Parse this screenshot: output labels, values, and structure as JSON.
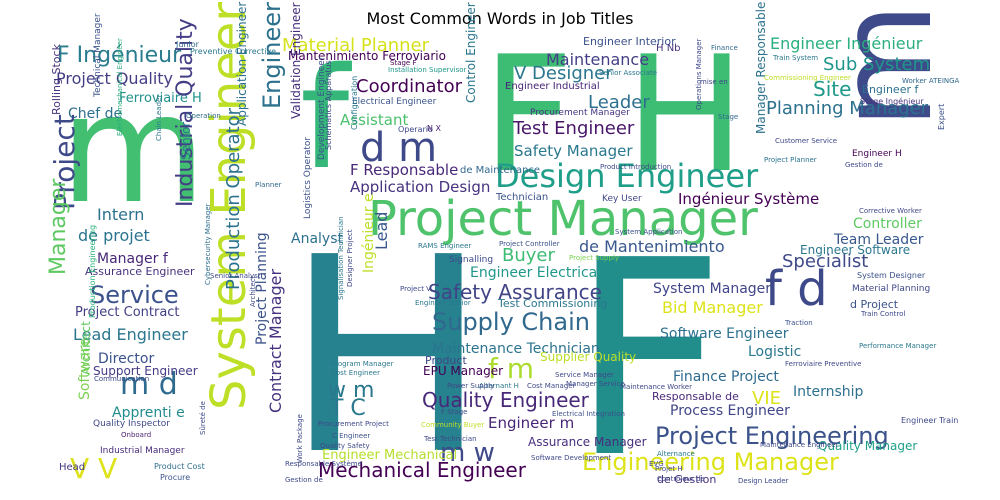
{
  "title": "Most Common Words in Job Titles",
  "words": [
    {
      "text": "H",
      "color": "#26828e"
    },
    {
      "text": "F",
      "color": "#218e8c"
    },
    {
      "text": "F H",
      "color": "#3dbc74"
    },
    {
      "text": "m",
      "color": "#43bf71"
    },
    {
      "text": "f",
      "color": "#35b779"
    },
    {
      "text": "m",
      "color": "#3e4a89"
    },
    {
      "text": "Project Manager",
      "color": "#4ec36b"
    },
    {
      "text": "System Engineer",
      "color": "#bddf26"
    },
    {
      "text": "Design Engineer",
      "color": "#1f9e89"
    },
    {
      "text": "Engineering Manager",
      "color": "#dde318"
    },
    {
      "text": "Project Engineering",
      "color": "#3b528b"
    },
    {
      "text": "Supply Chain",
      "color": "#31688e"
    },
    {
      "text": "Safety Assurance",
      "color": "#414487"
    },
    {
      "text": "Quality Engineer",
      "color": "#482878"
    },
    {
      "text": "Mechanical Engineer",
      "color": "#440154"
    },
    {
      "text": "d m",
      "color": "#3e4989"
    },
    {
      "text": "f d",
      "color": "#3e4989"
    },
    {
      "text": "m d",
      "color": "#2f6b8e"
    },
    {
      "text": "f m",
      "color": "#addc30"
    },
    {
      "text": "m w",
      "color": "#3e4a89"
    },
    {
      "text": "w m",
      "color": "#2a788e"
    },
    {
      "text": "T C",
      "color": "#2a788e"
    },
    {
      "text": "V V",
      "color": "#dde318"
    },
    {
      "text": "F Ingénieur",
      "color": "#287c8e"
    },
    {
      "text": "Material Planner",
      "color": "#d5e21a"
    },
    {
      "text": "Engineer Ingénieur",
      "color": "#29af7f"
    },
    {
      "text": "Sub System",
      "color": "#1f968b"
    },
    {
      "text": "Planning Manager",
      "color": "#2c718e"
    },
    {
      "text": "Site",
      "color": "#1f9a8a"
    },
    {
      "text": "V Designer",
      "color": "#2a768e"
    },
    {
      "text": "Maintenance",
      "color": "#433e85"
    },
    {
      "text": "Coordinator",
      "color": "#440154"
    },
    {
      "text": "Leader",
      "color": "#2d708e"
    },
    {
      "text": "Test Engineer",
      "color": "#481668"
    },
    {
      "text": "Safety Manager",
      "color": "#2a788e"
    },
    {
      "text": "Assistant",
      "color": "#4ac16d"
    },
    {
      "text": "Project Quality",
      "color": "#433d84"
    },
    {
      "text": "Chef de",
      "color": "#2e6e8e"
    },
    {
      "text": "Ferroviaire H",
      "color": "#21918c"
    },
    {
      "text": "Mantenimiento Ferroviario",
      "color": "#440154"
    },
    {
      "text": "Engineer Interior",
      "color": "#3b528b"
    },
    {
      "text": "H Nb",
      "color": "#46327e"
    },
    {
      "text": "Engineer Industrial",
      "color": "#482475"
    },
    {
      "text": "Electrical Engineer",
      "color": "#3a548c"
    },
    {
      "text": "Procurement Manager",
      "color": "#463480"
    },
    {
      "text": "F Responsable",
      "color": "#482878"
    },
    {
      "text": "Application Design",
      "color": "#46327e"
    },
    {
      "text": "de Maintenance",
      "color": "#31688e"
    },
    {
      "text": "Technician",
      "color": "#3b528b"
    },
    {
      "text": "Key User",
      "color": "#404688"
    },
    {
      "text": "Ingénieur Système",
      "color": "#440154"
    },
    {
      "text": "Controller",
      "color": "#5ec962"
    },
    {
      "text": "Team Leader",
      "color": "#38588c"
    },
    {
      "text": "Engineer Software",
      "color": "#2a778e"
    },
    {
      "text": "de Mantenimiento",
      "color": "#38588c"
    },
    {
      "text": "Buyer",
      "color": "#3dbc74"
    },
    {
      "text": "Engineer Electrical",
      "color": "#1f988b"
    },
    {
      "text": "Specialist",
      "color": "#3e4a89"
    },
    {
      "text": "Service",
      "color": "#3b528b"
    },
    {
      "text": "Manager f",
      "color": "#482878"
    },
    {
      "text": "Assurance Engineer",
      "color": "#46327e"
    },
    {
      "text": "de projet",
      "color": "#2b748e"
    },
    {
      "text": "Intern",
      "color": "#2c718e"
    },
    {
      "text": "Analyst",
      "color": "#2d708e"
    },
    {
      "text": "Lead",
      "color": "#38588c"
    },
    {
      "text": "Project",
      "color": "#3e4989"
    },
    {
      "text": "Engineer",
      "color": "#2d718e"
    },
    {
      "text": "Lead Engineer",
      "color": "#2a768e"
    },
    {
      "text": "Project Contract",
      "color": "#423f85"
    },
    {
      "text": "Production Engineering",
      "color": "#2fb47c"
    },
    {
      "text": "Director",
      "color": "#3b528b"
    },
    {
      "text": "Support Engineer",
      "color": "#443b84"
    },
    {
      "text": "Communication",
      "color": "#3e4989"
    },
    {
      "text": "Architect",
      "color": "#5ec962"
    },
    {
      "text": "Apprenti e",
      "color": "#228c8d"
    },
    {
      "text": "Quality Inspector",
      "color": "#3f4788"
    },
    {
      "text": "Onboard",
      "color": "#481f70"
    },
    {
      "text": "Industrial Manager",
      "color": "#472c7a"
    },
    {
      "text": "Head",
      "color": "#443983"
    },
    {
      "text": "Product Cost",
      "color": "#2e6e8e"
    },
    {
      "text": "Procure",
      "color": "#3b528b"
    },
    {
      "text": "Software",
      "color": "#7ad151"
    },
    {
      "text": "Manager",
      "color": "#5ec962"
    },
    {
      "text": "Industrial Quality",
      "color": "#433e85"
    },
    {
      "text": "Production Operator",
      "color": "#2c718e"
    },
    {
      "text": "Project Planning",
      "color": "#3b528b"
    },
    {
      "text": "Contract Manager",
      "color": "#46327e"
    },
    {
      "text": "Rolling Stock",
      "color": "#46327e"
    },
    {
      "text": "Technical Manager",
      "color": "#3b528b"
    },
    {
      "text": "Senior",
      "color": "#29798e"
    },
    {
      "text": "Validation Engineer",
      "color": "#472e7c"
    },
    {
      "text": "Application Engineer",
      "color": "#2d708e"
    },
    {
      "text": "Control Engineer",
      "color": "#2a768e"
    },
    {
      "text": "Development Engineer",
      "color": "#3b528b"
    },
    {
      "text": "Logistics Operator",
      "color": "#3b528b"
    },
    {
      "text": "Ingénieur e",
      "color": "#bddf26"
    },
    {
      "text": "Signalling",
      "color": "#3e4989"
    },
    {
      "text": "System Manager",
      "color": "#404688"
    },
    {
      "text": "Bid Manager",
      "color": "#dde318"
    },
    {
      "text": "Software Engineer",
      "color": "#2c728e"
    },
    {
      "text": "Logistic",
      "color": "#2a778e"
    },
    {
      "text": "Finance Project",
      "color": "#2f6b8e"
    },
    {
      "text": "Internship",
      "color": "#2d708e"
    },
    {
      "text": "Process Engineer",
      "color": "#404688"
    },
    {
      "text": "Quality Manager",
      "color": "#1fa188"
    },
    {
      "text": "Maintenance Technician",
      "color": "#2b748e"
    },
    {
      "text": "Supplier Quality",
      "color": "#bddf26"
    },
    {
      "text": "EPU Manager",
      "color": "#440154"
    },
    {
      "text": "Product",
      "color": "#404688"
    },
    {
      "text": "Engineer m",
      "color": "#482576"
    },
    {
      "text": "Assurance Manager",
      "color": "#472e7c"
    },
    {
      "text": "Responsable de",
      "color": "#482878"
    },
    {
      "text": "VIE",
      "color": "#dde318"
    },
    {
      "text": "de Gestion",
      "color": "#46327e"
    },
    {
      "text": "Engineer Mechanical",
      "color": "#b5de2b"
    },
    {
      "text": "System Designer",
      "color": "#3b528b"
    },
    {
      "text": "Material Planning",
      "color": "#3f4788"
    },
    {
      "text": "d Project",
      "color": "#3b528b"
    },
    {
      "text": "Train Control",
      "color": "#3e4989"
    },
    {
      "text": "Test Commissioning",
      "color": "#2a778e"
    },
    {
      "text": "Engineer H",
      "color": "#440154"
    },
    {
      "text": "Engineer f",
      "color": "#2c728e"
    },
    {
      "text": "Stage Ingénieur",
      "color": "#46327e"
    },
    {
      "text": "Manager Responsable",
      "color": "#2c728e"
    },
    {
      "text": "Customer Service",
      "color": "#3e4989"
    },
    {
      "text": "Project Planner",
      "color": "#2c718e"
    },
    {
      "text": "Expert",
      "color": "#3b528b"
    },
    {
      "text": "Finance",
      "color": "#31688e"
    },
    {
      "text": "Train System",
      "color": "#2a788e"
    },
    {
      "text": "Commissioning Engineer",
      "color": "#bddf26"
    },
    {
      "text": "Worker ATEINGA",
      "color": "#31688e"
    },
    {
      "text": "mise en",
      "color": "#404688"
    },
    {
      "text": "Operations Manager",
      "color": "#3e4989"
    },
    {
      "text": "Stage",
      "color": "#31688e"
    },
    {
      "text": "Senior Associate",
      "color": "#2a778e"
    },
    {
      "text": "Installation Supervisor",
      "color": "#1f978b"
    },
    {
      "text": "Stage F",
      "color": "#440154"
    },
    {
      "text": "Operario",
      "color": "#3e4989"
    },
    {
      "text": "N X",
      "color": "#482475"
    },
    {
      "text": "Configuration",
      "color": "#2a788e"
    },
    {
      "text": "Schematics Apparatus",
      "color": "#3e4989"
    },
    {
      "text": "Planner",
      "color": "#31688e"
    },
    {
      "text": "Preventive Corrective",
      "color": "#2a788e"
    },
    {
      "text": "Junior",
      "color": "#31688e"
    },
    {
      "text": "Operation",
      "color": "#2e6e8e"
    },
    {
      "text": "Electromechanical Engineer",
      "color": "#29af7f"
    },
    {
      "text": "Chain Leader",
      "color": "#2a768e"
    },
    {
      "text": "Cybersecurity Manager",
      "color": "#2e6e8e"
    },
    {
      "text": "Senior Analyst",
      "color": "#3e4989"
    },
    {
      "text": "RAMS Engineer",
      "color": "#2a788e"
    },
    {
      "text": "Project Controller",
      "color": "#3b528b"
    },
    {
      "text": "Project Supply",
      "color": "#7ad151"
    },
    {
      "text": "Program Manager",
      "color": "#2a788e"
    },
    {
      "text": "Cost Engineer",
      "color": "#2a788e"
    },
    {
      "text": "Service Manager",
      "color": "#3e4989"
    },
    {
      "text": "Manager Service",
      "color": "#3e4989"
    },
    {
      "text": "Cost Manager",
      "color": "#3e4989"
    },
    {
      "text": "Alternant H",
      "color": "#2a788e"
    },
    {
      "text": "Power Supply",
      "color": "#3e4989"
    },
    {
      "text": "F Stage",
      "color": "#3e4989"
    },
    {
      "text": "Community Buyer",
      "color": "#bddf26"
    },
    {
      "text": "Test Technician",
      "color": "#3e4989"
    },
    {
      "text": "Electrical Integration",
      "color": "#3b528b"
    },
    {
      "text": "Software Development",
      "color": "#3e4989"
    },
    {
      "text": "Procurement Project",
      "color": "#3e4989"
    },
    {
      "text": "C Engineer",
      "color": "#3b528b"
    },
    {
      "text": "Quality Safety",
      "color": "#3e4989"
    },
    {
      "text": "Responsable Système",
      "color": "#3e4989"
    },
    {
      "text": "Gestion de",
      "color": "#3e4989"
    },
    {
      "text": "Work Package",
      "color": "#3e4989"
    },
    {
      "text": "Sûreté de",
      "color": "#3e4989"
    },
    {
      "text": "Design Leader",
      "color": "#3e4989"
    },
    {
      "text": "Maintenance Engineer",
      "color": "#3e4989"
    },
    {
      "text": "Corrective Worker",
      "color": "#3e4989"
    },
    {
      "text": "Engineer Train",
      "color": "#3e4989"
    },
    {
      "text": "Traction",
      "color": "#3b528b"
    },
    {
      "text": "Performance Manager",
      "color": "#2a788e"
    },
    {
      "text": "Ferroviaire Preventive",
      "color": "#3e4989"
    },
    {
      "text": "Maintenance Worker",
      "color": "#3e4989"
    },
    {
      "text": "Product Introduction",
      "color": "#3e4989"
    },
    {
      "text": "Alternance",
      "color": "#2a788e"
    },
    {
      "text": "EVG",
      "color": "#3e4989"
    },
    {
      "text": "Projet H",
      "color": "#3e4989"
    },
    {
      "text": "Contrôleur de",
      "color": "#3e4989"
    },
    {
      "text": "Gestion de",
      "color": "#3e4989"
    },
    {
      "text": "System Application",
      "color": "#3b528b"
    },
    {
      "text": "Architect",
      "color": "#3e4989"
    },
    {
      "text": "Signalisation Technician",
      "color": "#2a788e"
    },
    {
      "text": "Designer Project",
      "color": "#3e4989"
    },
    {
      "text": "Engineer Senior",
      "color": "#2a788e"
    },
    {
      "text": "Project V",
      "color": "#3e4989"
    },
    {
      "text": "Engineer Signalling",
      "color": "#3e4989"
    }
  ]
}
